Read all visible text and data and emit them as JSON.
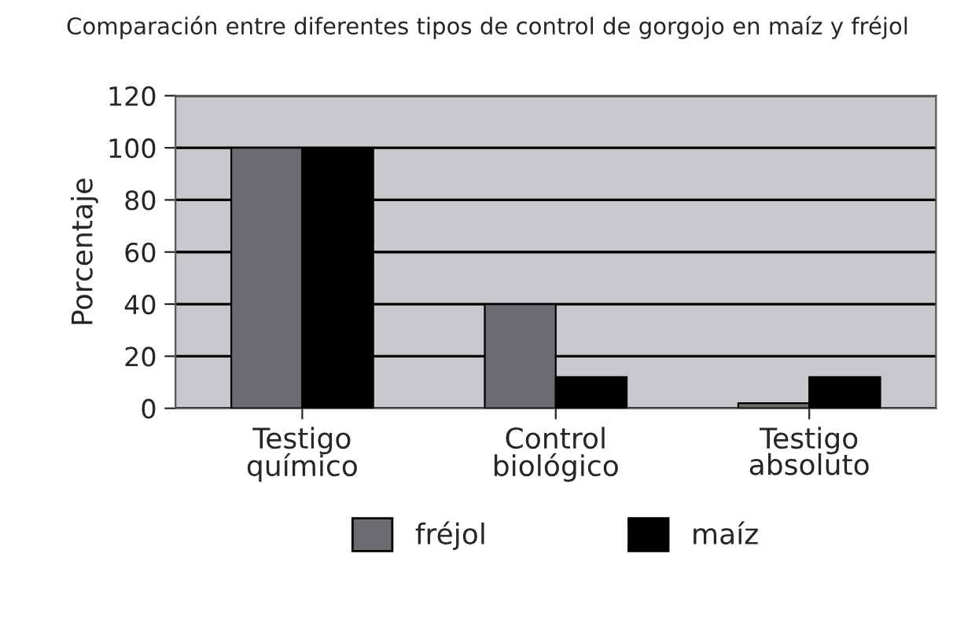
{
  "chart_data": {
    "type": "bar",
    "title": "Comparación entre diferentes tipos de control de gorgojo en maíz y fréjol",
    "ylabel": "Porcentaje",
    "categories": [
      "Testigo\nquímico",
      "Control\nbiológico",
      "Testigo\nabsoluto"
    ],
    "series": [
      {
        "name": "fréjol",
        "color": "#6b6b70",
        "values": [
          100,
          40,
          2
        ]
      },
      {
        "name": "maíz",
        "color": "#000000",
        "values": [
          100,
          12,
          12
        ]
      }
    ],
    "ylim": [
      0,
      120
    ],
    "yticks": [
      0,
      20,
      40,
      60,
      80,
      100,
      120
    ],
    "grid": "y",
    "legend": "bottom"
  }
}
